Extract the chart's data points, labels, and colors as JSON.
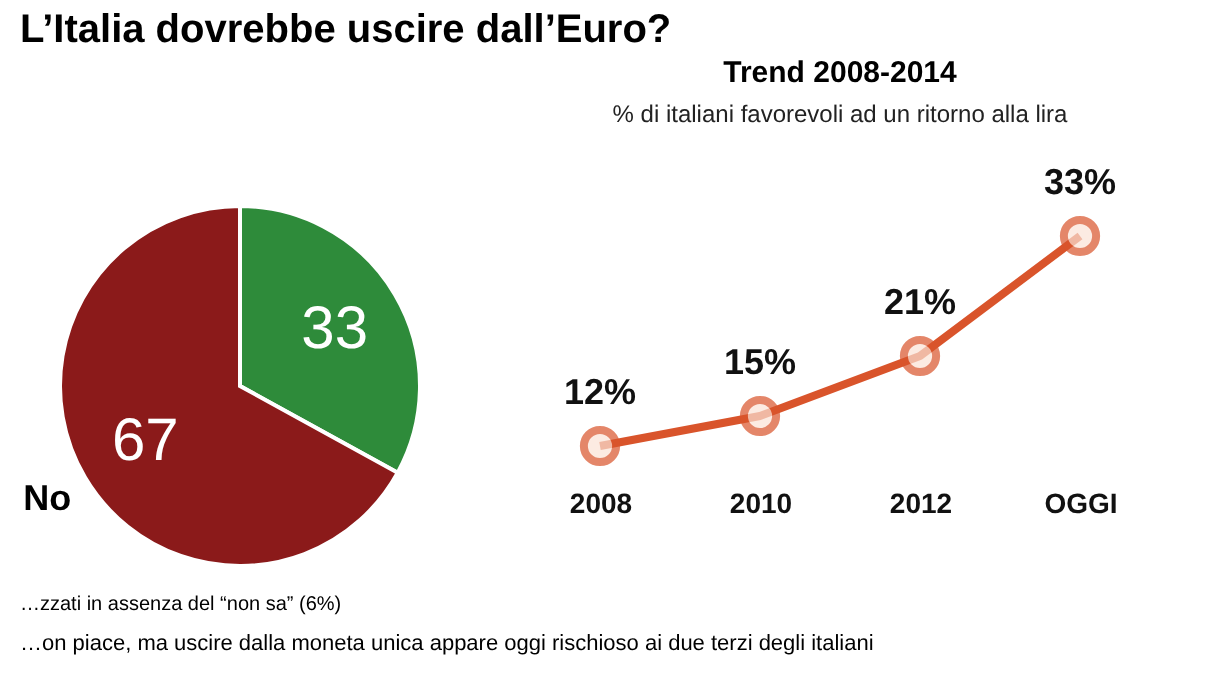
{
  "chart_data": [
    {
      "type": "pie",
      "title": "L’Italia dovrebbe uscire dall’Euro?",
      "categories": [
        null,
        "No"
      ],
      "values": [
        33,
        67
      ],
      "colors": [
        "#2e8b3a",
        "#8b1a1a"
      ],
      "data_labels": true,
      "annotations": [
        "…zzati in assenza del “non sa” (6%)",
        "…on piace, ma uscire dalla moneta unica appare oggi rischioso ai due terzi degli italiani"
      ]
    },
    {
      "type": "line",
      "title": "Trend 2008-2014",
      "subtitle": "% di italiani favorevoli ad un ritorno alla lira",
      "categories": [
        "2008",
        "2010",
        "2012",
        "OGGI"
      ],
      "series": [
        {
          "color": "#d9542b",
          "values": [
            12,
            15,
            21,
            33
          ],
          "value_labels": [
            "12%",
            "15%",
            "21%",
            "33%"
          ]
        }
      ],
      "marker": "circle",
      "line_style": "solid",
      "grid": false
    }
  ]
}
